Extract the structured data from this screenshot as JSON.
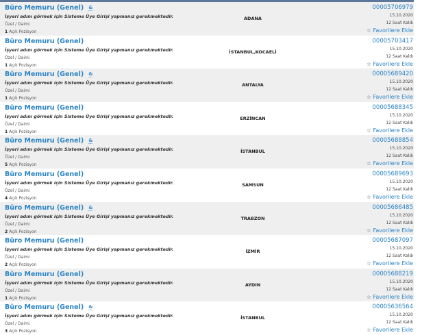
{
  "listings": [
    {
      "title": "Büro Memuru (Genel)",
      "has_icon": true,
      "note": "İşyeri adını görmek için Sisteme Üye Girişi yapmanız gerekmektedir.",
      "type": "Özel / Daimi",
      "count": "1",
      "count_label": "Açık Pozisyon",
      "location": "ADANA",
      "id": "00005706979",
      "date": "15.10.2020",
      "remaining": "12 Saat Kaldı",
      "favorite": "Favorilere Ekle"
    },
    {
      "title": "Büro Memuru (Genel)",
      "has_icon": false,
      "note": "İşyeri adını görmek için Sisteme Üye Girişi yapmanız gerekmektedir.",
      "type": "Özel / Daimi",
      "count": "1",
      "count_label": "Açık Pozisyon",
      "location": "İSTANBUL,KOCAELİ",
      "id": "00005703417",
      "date": "15.10.2020",
      "remaining": "12 Saat Kaldı",
      "favorite": "Favorilere Ekle"
    },
    {
      "title": "Büro Memuru (Genel)",
      "has_icon": true,
      "note": "İşyeri adını görmek için Sisteme Üye Girişi yapmanız gerekmektedir.",
      "type": "Özel / Daimi",
      "count": "1",
      "count_label": "Açık Pozisyon",
      "location": "ANTALYA",
      "id": "00005689420",
      "date": "15.10.2020",
      "remaining": "12 Saat Kaldı",
      "favorite": "Favorilere Ekle"
    },
    {
      "title": "Büro Memuru (Genel)",
      "has_icon": false,
      "note": "İşyeri adını görmek için Sisteme Üye Girişi yapmanız gerekmektedir.",
      "type": "Özel / Daimi",
      "count": "1",
      "count_label": "Açık Pozisyon",
      "location": "ERZİNCAN",
      "id": "00005688345",
      "date": "15.10.2020",
      "remaining": "12 Saat Kaldı",
      "favorite": "Favorilere Ekle"
    },
    {
      "title": "Büro Memuru (Genel)",
      "has_icon": true,
      "note": "İşyeri adını görmek için Sisteme Üye Girişi yapmanız gerekmektedir.",
      "type": "Özel / Daimi",
      "count": "5",
      "count_label": "Açık Pozisyon",
      "location": "İSTANBUL",
      "id": "00005688854",
      "date": "15.10.2020",
      "remaining": "12 Saat Kaldı",
      "favorite": "Favorilere Ekle"
    },
    {
      "title": "Büro Memuru (Genel)",
      "has_icon": false,
      "note": "İşyeri adını görmek için Sisteme Üye Girişi yapmanız gerekmektedir.",
      "type": "Özel / Daimi",
      "count": "4",
      "count_label": "Açık Pozisyon",
      "location": "SAMSUN",
      "id": "00005689693",
      "date": "15.10.2020",
      "remaining": "12 Saat Kaldı",
      "favorite": "Favorilere Ekle"
    },
    {
      "title": "Büro Memuru (Genel)",
      "has_icon": true,
      "note": "İşyeri adını görmek için Sisteme Üye Girişi yapmanız gerekmektedir.",
      "type": "Özel / Daimi",
      "count": "2",
      "count_label": "Açık Pozisyon",
      "location": "TRABZON",
      "id": "00005686485",
      "date": "15.10.2020",
      "remaining": "12 Saat Kaldı",
      "favorite": "Favorilere Ekle"
    },
    {
      "title": "Büro Memuru (Genel)",
      "has_icon": false,
      "note": "İşyeri adını görmek için Sisteme Üye Girişi yapmanız gerekmektedir.",
      "type": "Özel / Daimi",
      "count": "2",
      "count_label": "Açık Pozisyon",
      "location": "İZMİR",
      "id": "00005687097",
      "date": "15.10.2020",
      "remaining": "12 Saat Kaldı",
      "favorite": "Favorilere Ekle"
    },
    {
      "title": "Büro Memuru (Genel)",
      "has_icon": false,
      "note": "İşyeri adını görmek için Sisteme Üye Girişi yapmanız gerekmektedir.",
      "type": "Özel / Daimi",
      "count": "1",
      "count_label": "Açık Pozisyon",
      "location": "AYDIN",
      "id": "00005688219",
      "date": "15.10.2020",
      "remaining": "12 Saat Kaldı",
      "favorite": "Favorilere Ekle"
    },
    {
      "title": "Büro Memuru (Genel)",
      "has_icon": true,
      "note": "İşyeri adını görmek için Sisteme Üye Girişi yapmanız gerekmektedir.",
      "type": "Özel / Daimi",
      "count": "3",
      "count_label": "Açık Pozisyon",
      "location": "İSTANBUL",
      "id": "00005636564",
      "date": "15.10.2020",
      "remaining": "12 Saat Kaldı",
      "favorite": "Favorilere Ekle"
    }
  ],
  "icon_glyph": "&",
  "colors": {
    "link": "#2b84c6",
    "row_alt": "#efefef",
    "top_bar": "#5d7898"
  }
}
